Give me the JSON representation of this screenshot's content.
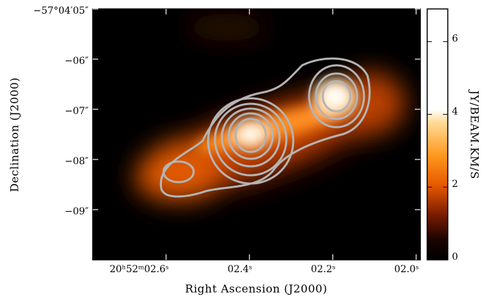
{
  "chart_data": {
    "type": "image",
    "x_label": "Right Ascension (J2000)",
    "y_label": "Declination (J2000)",
    "colorbar_label": "JY/BEAM.KM/S",
    "xlim": [
      2.776,
      1.99
    ],
    "xticks": [
      {
        "value": 2.6,
        "label": "20ʰ52ᵐ02.6ˢ"
      },
      {
        "value": 2.4,
        "label": "02.4ˢ"
      },
      {
        "value": 2.2,
        "label": "02.2ˢ"
      },
      {
        "value": 2.0,
        "label": "02.0ˢ"
      }
    ],
    "ylim": [
      10,
      5
    ],
    "yticks": [
      {
        "value": 5,
        "label": "−57°04′05″"
      },
      {
        "value": 6,
        "label": "−06″"
      },
      {
        "value": 7,
        "label": "−07″"
      },
      {
        "value": 8,
        "label": "−08″"
      },
      {
        "value": 9,
        "label": "−09″"
      }
    ],
    "clim": [
      0,
      6.9
    ],
    "cticks": [
      0,
      2,
      4,
      6
    ]
  }
}
